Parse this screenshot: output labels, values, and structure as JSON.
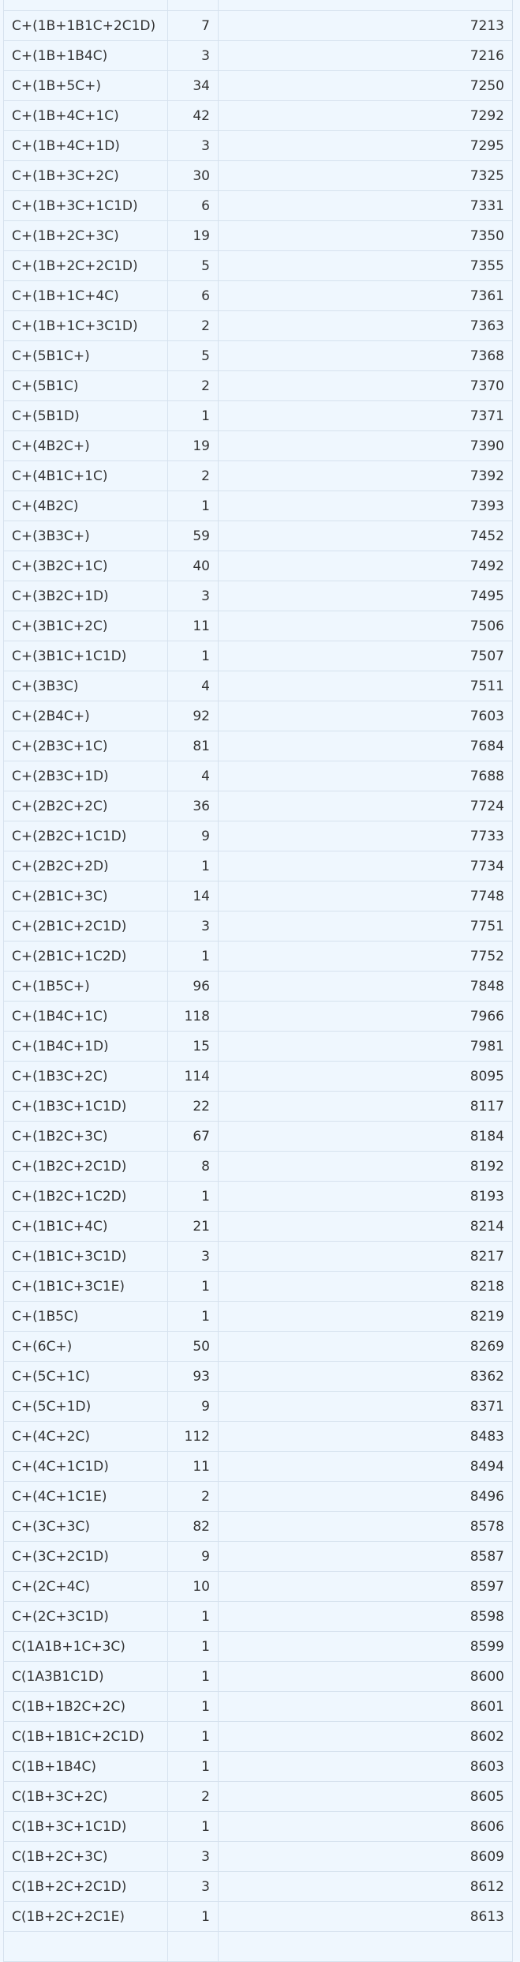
{
  "colors": {
    "background": "#eff7fe",
    "border": "#d6e2ee",
    "text": "#333333"
  },
  "table": {
    "rows": [
      [
        "C+(1B+1B1C+2C1D)",
        "7",
        "7213"
      ],
      [
        "C+(1B+1B4C)",
        "3",
        "7216"
      ],
      [
        "C+(1B+5C+)",
        "34",
        "7250"
      ],
      [
        "C+(1B+4C+1C)",
        "42",
        "7292"
      ],
      [
        "C+(1B+4C+1D)",
        "3",
        "7295"
      ],
      [
        "C+(1B+3C+2C)",
        "30",
        "7325"
      ],
      [
        "C+(1B+3C+1C1D)",
        "6",
        "7331"
      ],
      [
        "C+(1B+2C+3C)",
        "19",
        "7350"
      ],
      [
        "C+(1B+2C+2C1D)",
        "5",
        "7355"
      ],
      [
        "C+(1B+1C+4C)",
        "6",
        "7361"
      ],
      [
        "C+(1B+1C+3C1D)",
        "2",
        "7363"
      ],
      [
        "C+(5B1C+)",
        "5",
        "7368"
      ],
      [
        "C+(5B1C)",
        "2",
        "7370"
      ],
      [
        "C+(5B1D)",
        "1",
        "7371"
      ],
      [
        "C+(4B2C+)",
        "19",
        "7390"
      ],
      [
        "C+(4B1C+1C)",
        "2",
        "7392"
      ],
      [
        "C+(4B2C)",
        "1",
        "7393"
      ],
      [
        "C+(3B3C+)",
        "59",
        "7452"
      ],
      [
        "C+(3B2C+1C)",
        "40",
        "7492"
      ],
      [
        "C+(3B2C+1D)",
        "3",
        "7495"
      ],
      [
        "C+(3B1C+2C)",
        "11",
        "7506"
      ],
      [
        "C+(3B1C+1C1D)",
        "1",
        "7507"
      ],
      [
        "C+(3B3C)",
        "4",
        "7511"
      ],
      [
        "C+(2B4C+)",
        "92",
        "7603"
      ],
      [
        "C+(2B3C+1C)",
        "81",
        "7684"
      ],
      [
        "C+(2B3C+1D)",
        "4",
        "7688"
      ],
      [
        "C+(2B2C+2C)",
        "36",
        "7724"
      ],
      [
        "C+(2B2C+1C1D)",
        "9",
        "7733"
      ],
      [
        "C+(2B2C+2D)",
        "1",
        "7734"
      ],
      [
        "C+(2B1C+3C)",
        "14",
        "7748"
      ],
      [
        "C+(2B1C+2C1D)",
        "3",
        "7751"
      ],
      [
        "C+(2B1C+1C2D)",
        "1",
        "7752"
      ],
      [
        "C+(1B5C+)",
        "96",
        "7848"
      ],
      [
        "C+(1B4C+1C)",
        "118",
        "7966"
      ],
      [
        "C+(1B4C+1D)",
        "15",
        "7981"
      ],
      [
        "C+(1B3C+2C)",
        "114",
        "8095"
      ],
      [
        "C+(1B3C+1C1D)",
        "22",
        "8117"
      ],
      [
        "C+(1B2C+3C)",
        "67",
        "8184"
      ],
      [
        "C+(1B2C+2C1D)",
        "8",
        "8192"
      ],
      [
        "C+(1B2C+1C2D)",
        "1",
        "8193"
      ],
      [
        "C+(1B1C+4C)",
        "21",
        "8214"
      ],
      [
        "C+(1B1C+3C1D)",
        "3",
        "8217"
      ],
      [
        "C+(1B1C+3C1E)",
        "1",
        "8218"
      ],
      [
        "C+(1B5C)",
        "1",
        "8219"
      ],
      [
        "C+(6C+)",
        "50",
        "8269"
      ],
      [
        "C+(5C+1C)",
        "93",
        "8362"
      ],
      [
        "C+(5C+1D)",
        "9",
        "8371"
      ],
      [
        "C+(4C+2C)",
        "112",
        "8483"
      ],
      [
        "C+(4C+1C1D)",
        "11",
        "8494"
      ],
      [
        "C+(4C+1C1E)",
        "2",
        "8496"
      ],
      [
        "C+(3C+3C)",
        "82",
        "8578"
      ],
      [
        "C+(3C+2C1D)",
        "9",
        "8587"
      ],
      [
        "C+(2C+4C)",
        "10",
        "8597"
      ],
      [
        "C+(2C+3C1D)",
        "1",
        "8598"
      ],
      [
        "C(1A1B+1C+3C)",
        "1",
        "8599"
      ],
      [
        "C(1A3B1C1D)",
        "1",
        "8600"
      ],
      [
        "C(1B+1B2C+2C)",
        "1",
        "8601"
      ],
      [
        "C(1B+1B1C+2C1D)",
        "1",
        "8602"
      ],
      [
        "C(1B+1B4C)",
        "1",
        "8603"
      ],
      [
        "C(1B+3C+2C)",
        "2",
        "8605"
      ],
      [
        "C(1B+3C+1C1D)",
        "1",
        "8606"
      ],
      [
        "C(1B+2C+3C)",
        "3",
        "8609"
      ],
      [
        "C(1B+2C+2C1D)",
        "3",
        "8612"
      ],
      [
        "C(1B+2C+2C1E)",
        "1",
        "8613"
      ]
    ]
  }
}
